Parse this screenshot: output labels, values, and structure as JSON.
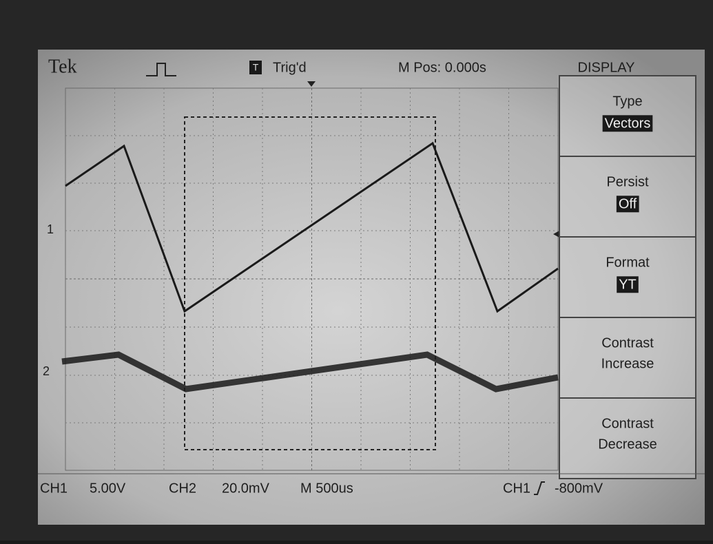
{
  "header": {
    "brand": "Tek",
    "trigger_icon": "T",
    "trigger_status": "Trig'd",
    "position": "M Pos: 0.000s",
    "menu_title": "DISPLAY"
  },
  "menu": [
    {
      "label": "Type",
      "value": "Vectors"
    },
    {
      "label": "Persist",
      "value": "Off"
    },
    {
      "label": "Format",
      "value": "YT"
    },
    {
      "label": "Contrast",
      "value": "Increase"
    },
    {
      "label": "Contrast",
      "value": "Decrease"
    }
  ],
  "markers": {
    "ch1": "1",
    "ch2": "2"
  },
  "footer": {
    "ch1": "CH1",
    "ch1_scale": "5.00V",
    "ch2": "CH2",
    "ch2_scale": "20.0mV",
    "timebase": "M 500us",
    "trigger_source": "CH1",
    "trigger_level": "-800mV"
  }
}
